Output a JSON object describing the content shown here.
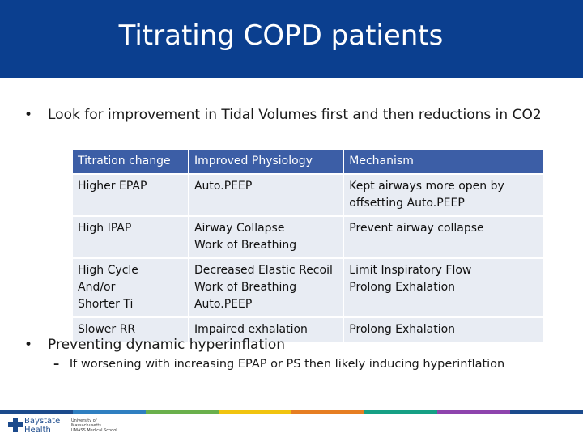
{
  "header": {
    "title": "Titrating COPD patients"
  },
  "bullets": [
    {
      "marker": "•",
      "text": "Look for improvement in Tidal Volumes first and then reductions in CO2"
    },
    {
      "marker": "•",
      "text": "Preventing dynamic hyperinflation"
    }
  ],
  "sub_bullet": {
    "marker": "–",
    "text": "If worsening with increasing EPAP or PS then likely inducing hyperinflation"
  },
  "table": {
    "header": [
      "Titration change",
      "Improved Physiology",
      "Mechanism"
    ],
    "rows": [
      [
        "Higher EPAP",
        "Auto.PEEP",
        "Kept airways more open by offsetting Auto.PEEP"
      ],
      [
        "High IPAP",
        "Airway Collapse\nWork of Breathing",
        "Prevent airway collapse"
      ],
      [
        "High Cycle\nAnd/or\nShorter Ti",
        "Decreased Elastic Recoil\nWork of Breathing\nAuto.PEEP",
        "Limit Inspiratory Flow\nProlong Exhalation"
      ],
      [
        "Slower RR",
        "Impaired exhalation",
        "Prolong Exhalation"
      ]
    ]
  },
  "footer": {
    "logo": "Baystate\nHealth",
    "partner": "University of\nMassachusetts\nUMASS Medical School"
  }
}
